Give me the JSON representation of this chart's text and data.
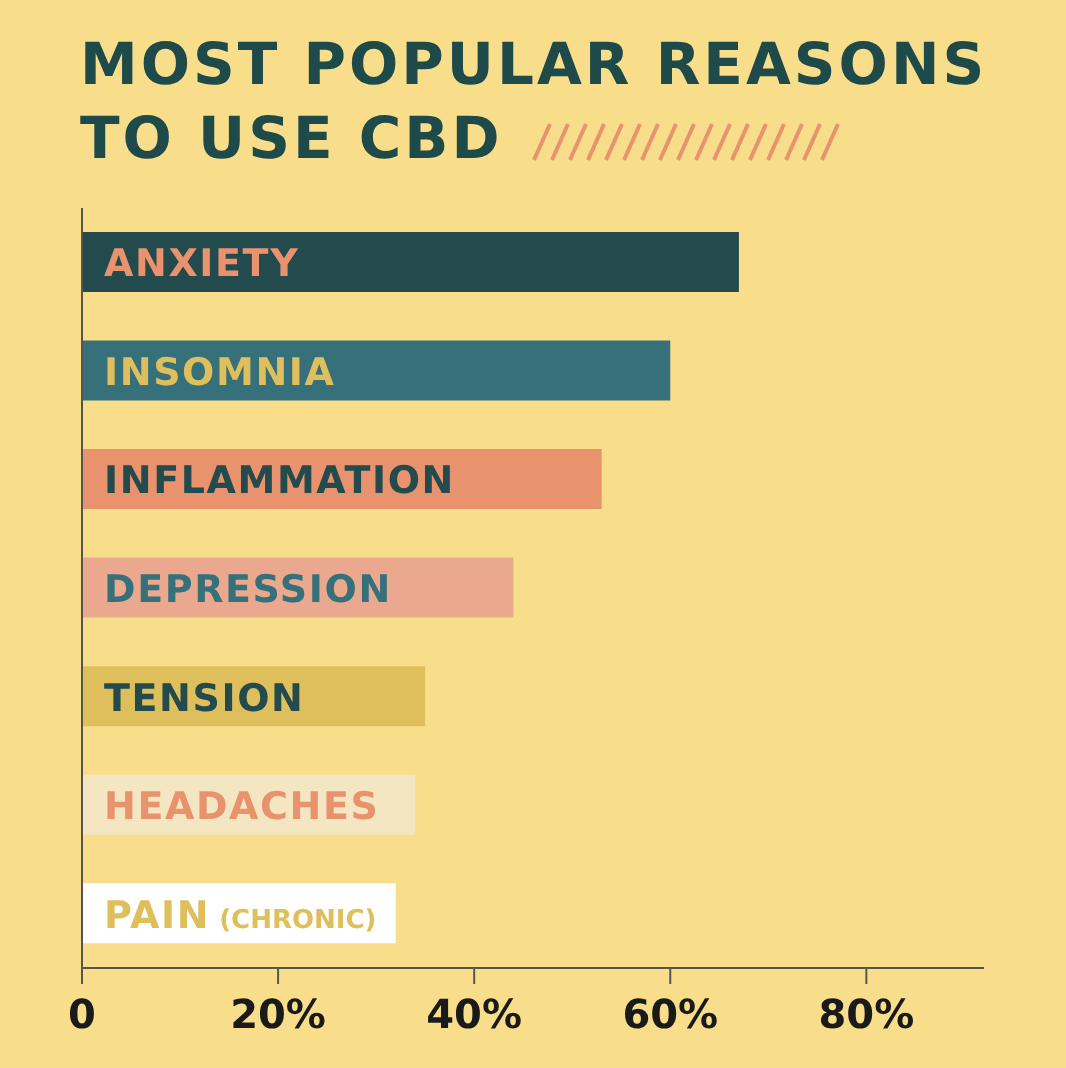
{
  "chart_data": {
    "type": "bar",
    "orientation": "horizontal",
    "title": "MOST POPULAR REASONS\nTO USE CBD",
    "categories": [
      "ANXIETY",
      "INSOMNIA",
      "INFLAMMATION",
      "DEPRESSION",
      "TENSION",
      "HEADACHES",
      "PAIN (CHRONIC)"
    ],
    "values": [
      67,
      60,
      53,
      44,
      35,
      34,
      32
    ],
    "colors": [
      "#234a4c",
      "#36707a",
      "#e8926e",
      "#eaa98e",
      "#dfbf5c",
      "#f3e6c0",
      "#ffffff"
    ],
    "xlim": [
      0,
      92
    ],
    "xticks": [
      {
        "value": 0,
        "label": "0"
      },
      {
        "value": 20,
        "label": "20%"
      },
      {
        "value": 40,
        "label": "40%"
      },
      {
        "value": 60,
        "label": "60%"
      },
      {
        "value": 80,
        "label": "80%"
      }
    ],
    "legend": false
  }
}
